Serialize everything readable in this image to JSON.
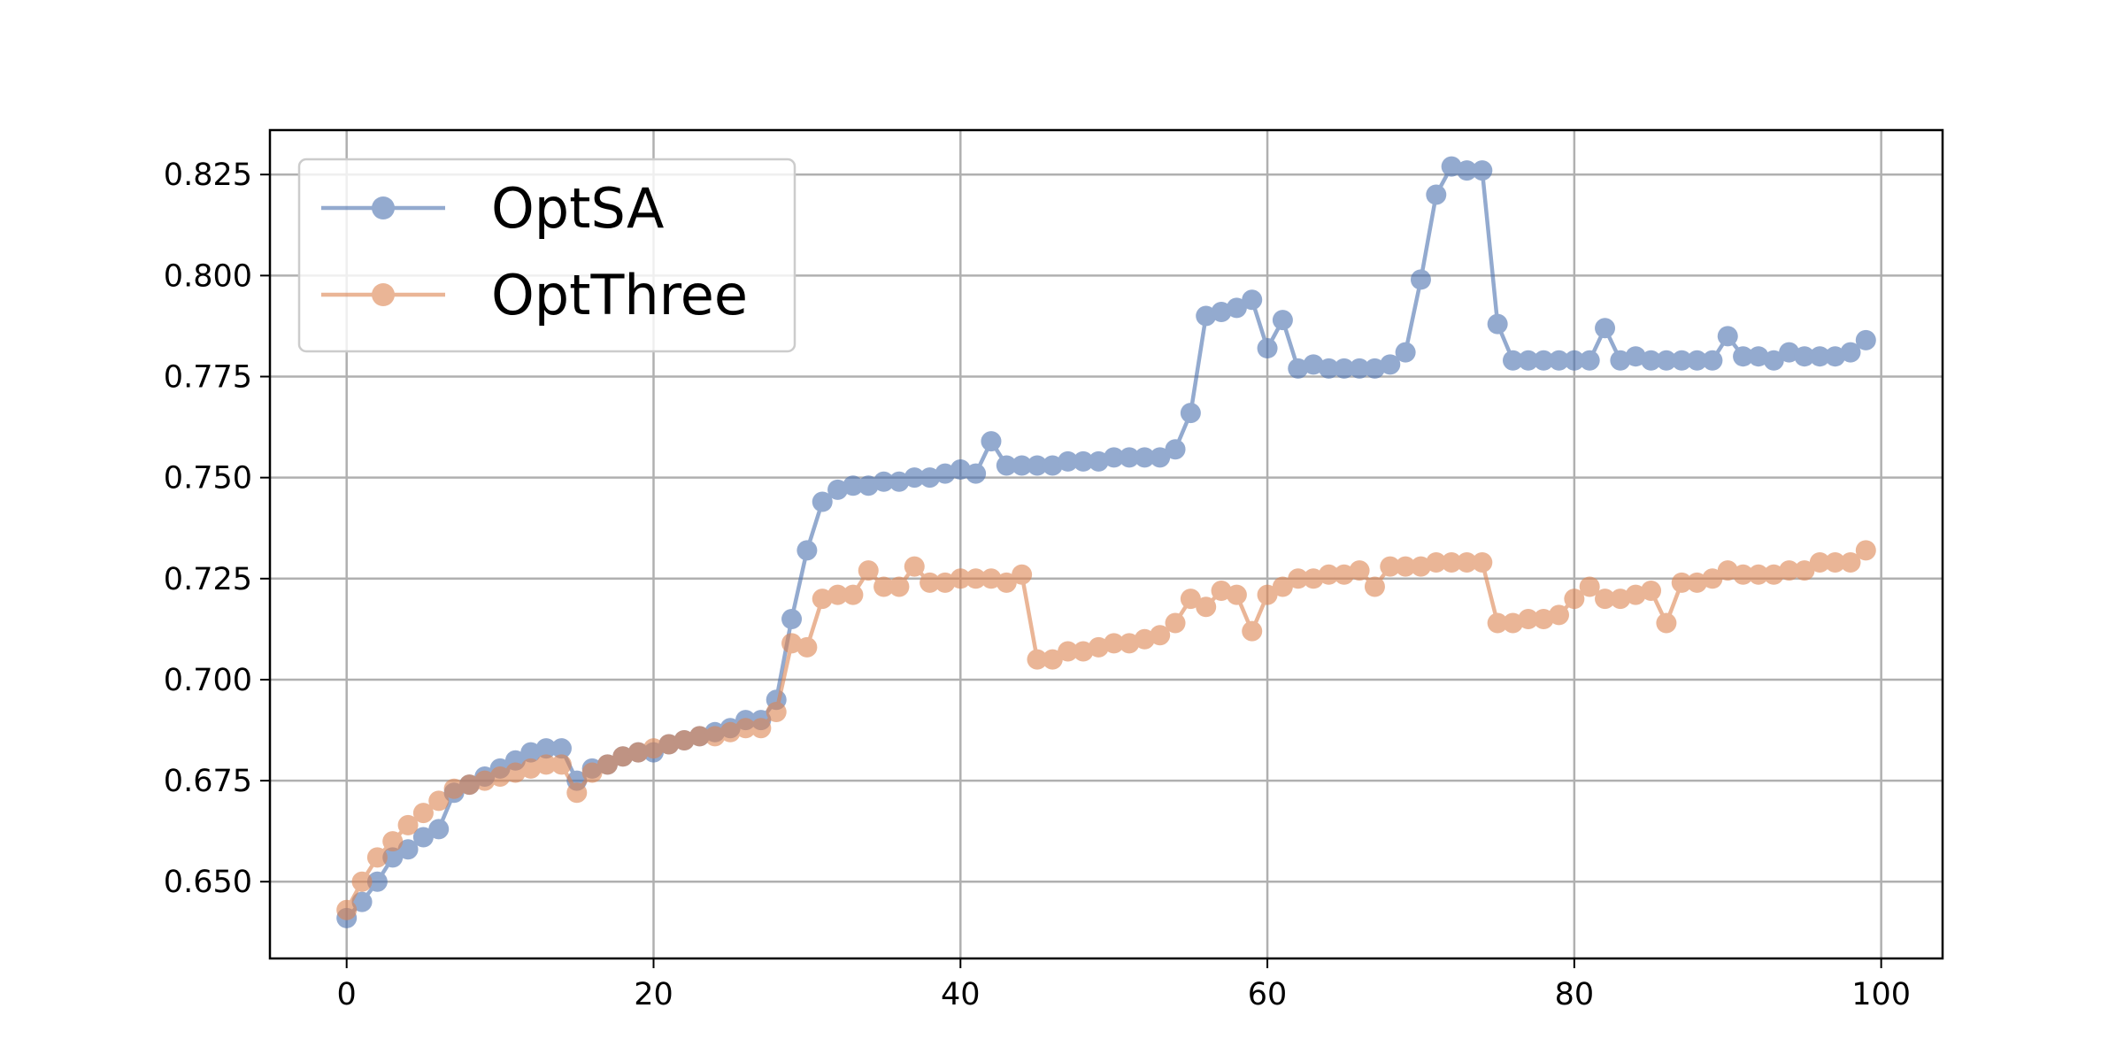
{
  "chart_data": {
    "type": "line",
    "title": "",
    "xlabel": "",
    "ylabel": "",
    "xlim": [
      -5,
      104
    ],
    "ylim": [
      0.631,
      0.836
    ],
    "grid": true,
    "legend_position": "top-left",
    "xticks": [
      0,
      20,
      40,
      60,
      80,
      100
    ],
    "xtick_labels": [
      "0",
      "20",
      "40",
      "60",
      "80",
      "100"
    ],
    "yticks": [
      0.65,
      0.675,
      0.7,
      0.725,
      0.75,
      0.775,
      0.8,
      0.825
    ],
    "ytick_labels": [
      "0.650",
      "0.675",
      "0.700",
      "0.725",
      "0.750",
      "0.775",
      "0.800",
      "0.825"
    ],
    "x": [
      0,
      1,
      2,
      3,
      4,
      5,
      6,
      7,
      8,
      9,
      10,
      11,
      12,
      13,
      14,
      15,
      16,
      17,
      18,
      19,
      20,
      21,
      22,
      23,
      24,
      25,
      26,
      27,
      28,
      29,
      30,
      31,
      32,
      33,
      34,
      35,
      36,
      37,
      38,
      39,
      40,
      41,
      42,
      43,
      44,
      45,
      46,
      47,
      48,
      49,
      50,
      51,
      52,
      53,
      54,
      55,
      56,
      57,
      58,
      59,
      60,
      61,
      62,
      63,
      64,
      65,
      66,
      67,
      68,
      69,
      70,
      71,
      72,
      73,
      74,
      75,
      76,
      77,
      78,
      79,
      80,
      81,
      82,
      83,
      84,
      85,
      86,
      87,
      88,
      89,
      90,
      91,
      92,
      93,
      94,
      95,
      96,
      97,
      98,
      99
    ],
    "series": [
      {
        "name": "OptSA",
        "color": "#4c72b0",
        "values": [
          0.641,
          0.645,
          0.65,
          0.656,
          0.658,
          0.661,
          0.663,
          0.672,
          0.674,
          0.676,
          0.678,
          0.68,
          0.682,
          0.683,
          0.683,
          0.675,
          0.678,
          0.679,
          0.681,
          0.682,
          0.682,
          0.684,
          0.685,
          0.686,
          0.687,
          0.688,
          0.69,
          0.69,
          0.695,
          0.715,
          0.732,
          0.744,
          0.747,
          0.748,
          0.748,
          0.749,
          0.749,
          0.75,
          0.75,
          0.751,
          0.752,
          0.751,
          0.759,
          0.753,
          0.753,
          0.753,
          0.753,
          0.754,
          0.754,
          0.754,
          0.755,
          0.755,
          0.755,
          0.755,
          0.757,
          0.766,
          0.79,
          0.791,
          0.792,
          0.794,
          0.782,
          0.789,
          0.777,
          0.778,
          0.777,
          0.777,
          0.777,
          0.777,
          0.778,
          0.781,
          0.799,
          0.82,
          0.827,
          0.826,
          0.826,
          0.788,
          0.779,
          0.779,
          0.779,
          0.779,
          0.779,
          0.779,
          0.787,
          0.779,
          0.78,
          0.779,
          0.779,
          0.779,
          0.779,
          0.779,
          0.785,
          0.78,
          0.78,
          0.779,
          0.781,
          0.78,
          0.78,
          0.78,
          0.781,
          0.784
        ]
      },
      {
        "name": "OptThree",
        "color": "#dd8452",
        "values": [
          0.643,
          0.65,
          0.656,
          0.66,
          0.664,
          0.667,
          0.67,
          0.673,
          0.674,
          0.675,
          0.676,
          0.677,
          0.678,
          0.679,
          0.679,
          0.672,
          0.677,
          0.679,
          0.681,
          0.682,
          0.683,
          0.684,
          0.685,
          0.686,
          0.686,
          0.687,
          0.688,
          0.688,
          0.692,
          0.709,
          0.708,
          0.72,
          0.721,
          0.721,
          0.727,
          0.723,
          0.723,
          0.728,
          0.724,
          0.724,
          0.725,
          0.725,
          0.725,
          0.724,
          0.726,
          0.705,
          0.705,
          0.707,
          0.707,
          0.708,
          0.709,
          0.709,
          0.71,
          0.711,
          0.714,
          0.72,
          0.718,
          0.722,
          0.721,
          0.712,
          0.721,
          0.723,
          0.725,
          0.725,
          0.726,
          0.726,
          0.727,
          0.723,
          0.728,
          0.728,
          0.728,
          0.729,
          0.729,
          0.729,
          0.729,
          0.714,
          0.714,
          0.715,
          0.715,
          0.716,
          0.72,
          0.723,
          0.72,
          0.72,
          0.721,
          0.722,
          0.714,
          0.724,
          0.724,
          0.725,
          0.727,
          0.726,
          0.726,
          0.726,
          0.727,
          0.727,
          0.729,
          0.729,
          0.729,
          0.732
        ]
      }
    ]
  }
}
